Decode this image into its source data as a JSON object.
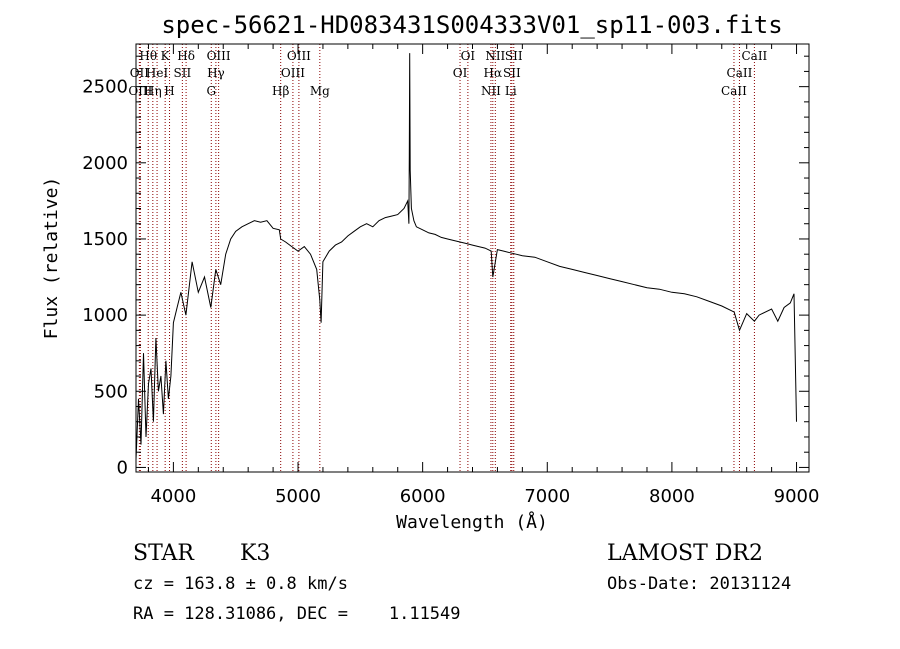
{
  "chart_data": {
    "type": "line",
    "title": "spec-56621-HD083431S004333V01_sp11-003.fits",
    "xlabel": "Wavelength (Å)",
    "ylabel": "Flux (relative)",
    "xlim": [
      3700,
      9100
    ],
    "ylim": [
      -30,
      2780
    ],
    "x_ticks": [
      4000,
      5000,
      6000,
      7000,
      8000,
      9000
    ],
    "y_ticks": [
      0,
      500,
      1000,
      1500,
      2000,
      2500
    ],
    "grid": false,
    "series": [
      {
        "x": [
          3700,
          3720,
          3740,
          3760,
          3780,
          3800,
          3820,
          3840,
          3860,
          3880,
          3900,
          3920,
          3940,
          3960,
          3980,
          4000,
          4030,
          4060,
          4100,
          4150,
          4200,
          4250,
          4300,
          4340,
          4380,
          4420,
          4460,
          4500,
          4550,
          4600,
          4650,
          4700,
          4750,
          4800,
          4850,
          4861,
          4900,
          4950,
          5000,
          5050,
          5100,
          5150,
          5175,
          5185,
          5200,
          5250,
          5300,
          5350,
          5400,
          5450,
          5500,
          5550,
          5600,
          5650,
          5700,
          5750,
          5800,
          5850,
          5880,
          5890,
          5893,
          5896,
          5900,
          5910,
          5930,
          5950,
          6000,
          6050,
          6100,
          6150,
          6200,
          6250,
          6300,
          6350,
          6400,
          6450,
          6500,
          6550,
          6563,
          6600,
          6650,
          6700,
          6750,
          6800,
          6900,
          7000,
          7100,
          7200,
          7300,
          7400,
          7500,
          7600,
          7700,
          7800,
          7900,
          8000,
          8100,
          8200,
          8300,
          8400,
          8500,
          8542,
          8600,
          8662,
          8700,
          8800,
          8850,
          8900,
          8950,
          8980,
          9000
        ],
        "y": [
          50,
          450,
          150,
          750,
          200,
          550,
          650,
          300,
          850,
          500,
          600,
          350,
          700,
          450,
          600,
          950,
          1050,
          1150,
          1000,
          1350,
          1150,
          1250,
          1050,
          1300,
          1200,
          1400,
          1500,
          1550,
          1580,
          1600,
          1620,
          1610,
          1620,
          1570,
          1560,
          1500,
          1480,
          1450,
          1420,
          1450,
          1400,
          1300,
          1100,
          950,
          1350,
          1420,
          1460,
          1480,
          1520,
          1550,
          1580,
          1600,
          1580,
          1620,
          1640,
          1650,
          1660,
          1700,
          1750,
          1600,
          2050,
          2720,
          1950,
          1700,
          1620,
          1580,
          1560,
          1540,
          1530,
          1510,
          1500,
          1490,
          1480,
          1470,
          1460,
          1450,
          1440,
          1420,
          1250,
          1430,
          1420,
          1410,
          1400,
          1390,
          1380,
          1350,
          1320,
          1300,
          1280,
          1260,
          1240,
          1220,
          1200,
          1180,
          1170,
          1150,
          1140,
          1120,
          1090,
          1060,
          1020,
          900,
          1010,
          960,
          1000,
          1040,
          960,
          1050,
          1080,
          1140,
          300
        ]
      }
    ],
    "lines": [
      {
        "wl": 3727,
        "label": "OII",
        "row": 2
      },
      {
        "wl": 3735,
        "label": "OIII",
        "row": 3
      },
      {
        "wl": 3798,
        "label": "Hθ",
        "row": 1
      },
      {
        "wl": 3835,
        "label": "Hη",
        "row": 3
      },
      {
        "wl": 3869,
        "label": "HeI",
        "row": 2
      },
      {
        "wl": 3934,
        "label": "K",
        "row": 1
      },
      {
        "wl": 3969,
        "label": "H",
        "row": 3
      },
      {
        "wl": 4072,
        "label": "SII",
        "row": 2
      },
      {
        "wl": 4102,
        "label": "Hδ",
        "row": 1
      },
      {
        "wl": 4304,
        "label": "G",
        "row": 3
      },
      {
        "wl": 4341,
        "label": "Hγ",
        "row": 2
      },
      {
        "wl": 4363,
        "label": "OIII",
        "row": 1
      },
      {
        "wl": 4861,
        "label": "Hβ",
        "row": 3
      },
      {
        "wl": 4959,
        "label": "OIII",
        "row": 2
      },
      {
        "wl": 5007,
        "label": "OIII",
        "row": 1
      },
      {
        "wl": 5175,
        "label": "Mg",
        "row": 3
      },
      {
        "wl": 6300,
        "label": "OI",
        "row": 2
      },
      {
        "wl": 6363,
        "label": "OI",
        "row": 1
      },
      {
        "wl": 6548,
        "label": "NII",
        "row": 3
      },
      {
        "wl": 6563,
        "label": "Hα",
        "row": 2
      },
      {
        "wl": 6583,
        "label": "NII",
        "row": 1
      },
      {
        "wl": 6707,
        "label": "Li",
        "row": 3
      },
      {
        "wl": 6716,
        "label": "SII",
        "row": 2
      },
      {
        "wl": 6731,
        "label": "SII",
        "row": 1
      },
      {
        "wl": 8498,
        "label": "CaII",
        "row": 3
      },
      {
        "wl": 8542,
        "label": "CaII",
        "row": 2
      },
      {
        "wl": 8662,
        "label": "CaII",
        "row": 1
      }
    ],
    "line_color": "#8b0000"
  },
  "info": {
    "object_class": "STAR",
    "subclass": "K3",
    "survey": "LAMOST DR2",
    "cz": "cz = 163.8 ± 0.8 km/s",
    "obs_date": "Obs-Date: 20131124",
    "coords": "RA = 128.31086, DEC =    1.11549"
  }
}
